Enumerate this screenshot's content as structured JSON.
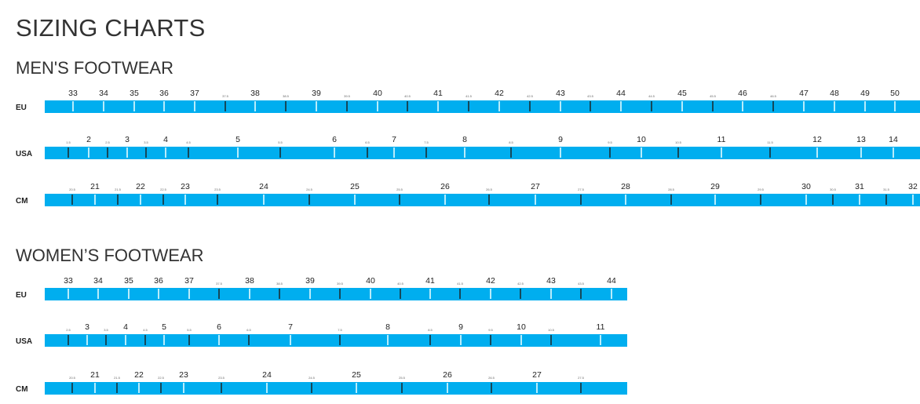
{
  "title": "SIZING CHARTS",
  "bar_color": "#00aeef",
  "sections": [
    {
      "heading": "MEN'S FOOTWEAR",
      "rows": [
        {
          "label": "EU",
          "ticks": [
            "33",
            "34",
            "35",
            "36",
            "37",
            "37.5",
            "38",
            "38.5",
            "39",
            "39.5",
            "40",
            "40.5",
            "41",
            "41.5",
            "42",
            "42.5",
            "43",
            "43.5",
            "44",
            "44.5",
            "45",
            "45.5",
            "46",
            "46.5",
            "47",
            "48",
            "49",
            "50"
          ]
        },
        {
          "label": "USA",
          "ticks": [
            "1.5",
            "2",
            "2.5",
            "3",
            "3.5",
            "4",
            "4.5",
            "5",
            "5.5",
            "6",
            "6.5",
            "7",
            "7.5",
            "8",
            "8.5",
            "9",
            "9.5",
            "10",
            "10.5",
            "11",
            "11.5",
            "12",
            "13",
            "14"
          ]
        },
        {
          "label": "CM",
          "ticks": [
            "20.5",
            "21",
            "21.5",
            "22",
            "22.5",
            "23",
            "23.5",
            "24",
            "24.5",
            "25",
            "25.5",
            "26",
            "26.5",
            "27",
            "27.5",
            "28",
            "28.5",
            "29",
            "29.5",
            "30",
            "30.5",
            "31",
            "31.5",
            "32"
          ]
        }
      ]
    },
    {
      "heading": "WOMEN’S FOOTWEAR",
      "rows": [
        {
          "label": "EU",
          "ticks": [
            "33",
            "34",
            "35",
            "36",
            "37",
            "37.5",
            "38",
            "38.5",
            "39",
            "39.5",
            "40",
            "40.5",
            "41",
            "41.5",
            "42",
            "42.5",
            "43",
            "43.5",
            "44"
          ]
        },
        {
          "label": "USA",
          "ticks": [
            "2.5",
            "3",
            "3.5",
            "4",
            "4.5",
            "5",
            "5.5",
            "6",
            "6.5",
            "7",
            "7.5",
            "8",
            "8.5",
            "9",
            "9.5",
            "10",
            "10.5",
            "11"
          ]
        },
        {
          "label": "CM",
          "ticks": [
            "20.5",
            "21",
            "21.5",
            "22",
            "22.5",
            "23",
            "23.5",
            "24",
            "24.5",
            "25",
            "25.5",
            "26",
            "26.5",
            "27",
            "27.5"
          ]
        }
      ]
    }
  ]
}
